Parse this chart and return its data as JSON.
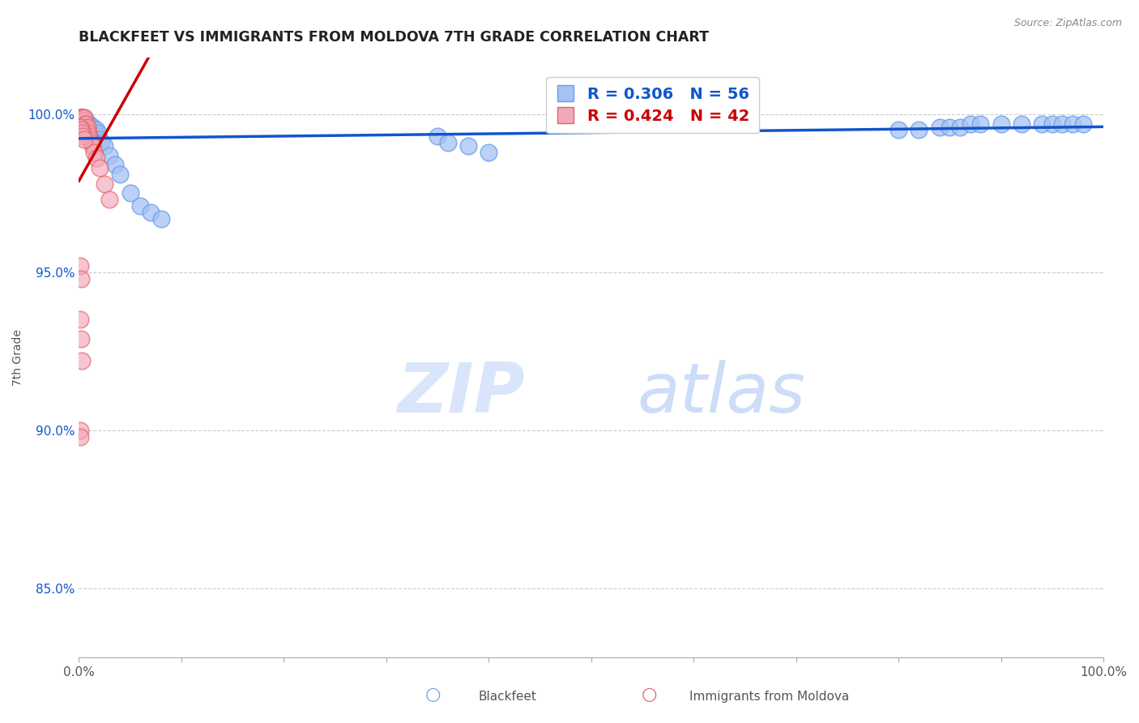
{
  "title": "BLACKFEET VS IMMIGRANTS FROM MOLDOVA 7TH GRADE CORRELATION CHART",
  "source_text": "Source: ZipAtlas.com",
  "ylabel": "7th Grade",
  "xlim": [
    0,
    1.0
  ],
  "ylim": [
    0.828,
    1.018
  ],
  "yticks": [
    0.85,
    0.9,
    0.95,
    1.0
  ],
  "ytick_labels": [
    "85.0%",
    "90.0%",
    "95.0%",
    "100.0%"
  ],
  "watermark_zip": "ZIP",
  "watermark_atlas": "atlas",
  "blue_color": "#a4c2f4",
  "blue_edge": "#6d9eeb",
  "pink_color": "#f4a7b9",
  "pink_edge": "#e06666",
  "blue_trend_color": "#1155cc",
  "pink_trend_color": "#cc0000",
  "legend_blue_text_color": "#1155cc",
  "legend_pink_text_color": "#cc0000",
  "blackfeet_x": [
    0.001,
    0.002,
    0.002,
    0.003,
    0.003,
    0.003,
    0.004,
    0.004,
    0.005,
    0.005,
    0.006,
    0.006,
    0.007,
    0.007,
    0.008,
    0.008,
    0.009,
    0.01,
    0.01,
    0.011,
    0.012,
    0.013,
    0.014,
    0.015,
    0.016,
    0.017,
    0.018,
    0.019,
    0.02,
    0.022,
    0.025,
    0.03,
    0.035,
    0.04,
    0.05,
    0.06,
    0.07,
    0.08,
    0.35,
    0.36,
    0.38,
    0.4,
    0.8,
    0.82,
    0.84,
    0.85,
    0.86,
    0.87,
    0.88,
    0.9,
    0.92,
    0.94,
    0.95,
    0.96,
    0.97,
    0.98
  ],
  "blackfeet_y": [
    0.999,
    0.998,
    0.999,
    0.998,
    0.999,
    0.998,
    0.997,
    0.999,
    0.998,
    0.999,
    0.997,
    0.998,
    0.997,
    0.998,
    0.996,
    0.997,
    0.996,
    0.995,
    0.997,
    0.996,
    0.995,
    0.994,
    0.996,
    0.993,
    0.994,
    0.995,
    0.993,
    0.994,
    0.992,
    0.991,
    0.99,
    0.987,
    0.984,
    0.981,
    0.975,
    0.971,
    0.969,
    0.967,
    0.993,
    0.991,
    0.99,
    0.988,
    0.995,
    0.995,
    0.996,
    0.996,
    0.996,
    0.997,
    0.997,
    0.997,
    0.997,
    0.997,
    0.997,
    0.997,
    0.997,
    0.997
  ],
  "moldova_x": [
    0.001,
    0.001,
    0.002,
    0.002,
    0.002,
    0.003,
    0.003,
    0.003,
    0.004,
    0.004,
    0.004,
    0.005,
    0.005,
    0.005,
    0.006,
    0.006,
    0.007,
    0.007,
    0.008,
    0.008,
    0.009,
    0.01,
    0.011,
    0.012,
    0.013,
    0.015,
    0.017,
    0.02,
    0.025,
    0.03,
    0.001,
    0.002,
    0.003,
    0.004,
    0.005,
    0.001,
    0.002,
    0.001,
    0.002,
    0.003,
    0.001,
    0.001
  ],
  "moldova_y": [
    0.999,
    0.998,
    0.999,
    0.998,
    0.997,
    0.999,
    0.998,
    0.997,
    0.997,
    0.998,
    0.999,
    0.997,
    0.998,
    0.999,
    0.996,
    0.997,
    0.996,
    0.997,
    0.995,
    0.996,
    0.994,
    0.993,
    0.992,
    0.991,
    0.99,
    0.988,
    0.986,
    0.983,
    0.978,
    0.973,
    0.996,
    0.995,
    0.994,
    0.993,
    0.992,
    0.952,
    0.948,
    0.935,
    0.929,
    0.922,
    0.9,
    0.898
  ]
}
